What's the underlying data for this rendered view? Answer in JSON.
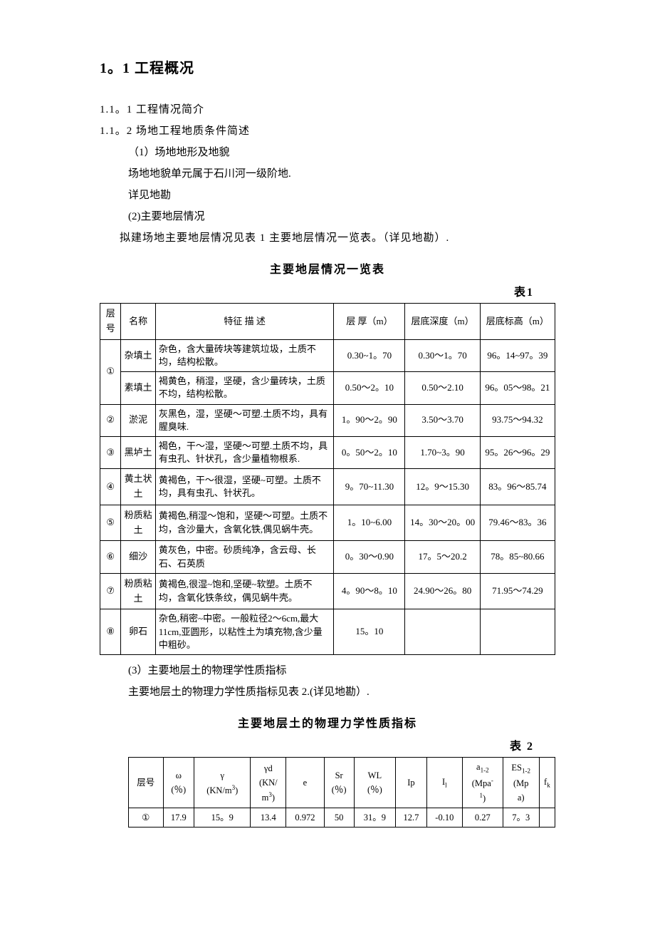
{
  "heading": "1。1 工程概况",
  "sub1": "1.1。1  工程情况简介",
  "sub2": "1.1。2  场地工程地质条件简述",
  "item1": "（1）场地地形及地貌",
  "line_terrain": "场地地貌单元属于石川河一级阶地.",
  "line_see": "详见地勘",
  "item2": "(2)主要地层情况",
  "line_table1_intro": "拟建场地主要地层情况见表 1 主要地层情况一览表。（详见地勘）.",
  "table1_title": "主要地层情况一览表",
  "table1_num": "表1",
  "table1_headers": {
    "layer": "层号",
    "name": "名称",
    "desc": "特征 描 述",
    "thick": "层  厚（m）",
    "depth": "层底深度（m）",
    "elev": "层底标高（m）"
  },
  "table1_rows": [
    {
      "layer": "①",
      "name": "杂填土",
      "desc": "杂色，含大量砖块等建筑垃圾，土质不均，结构松散。",
      "thick": "0.30~1。70",
      "depth": "0.30～1。70",
      "elev": "96。14~97。39",
      "rowspan": 2
    },
    {
      "layer": "",
      "name": "素填土",
      "desc": "褐黄色，稍湿，坚硬，含少量砖块，土质不均，结构松散。",
      "thick": "0.50～2。10",
      "depth": "0.50～2.10",
      "elev": "96。05～98。21"
    },
    {
      "layer": "②",
      "name": "淤泥",
      "desc": "灰黑色，湿，坚硬～可塑.土质不均，具有腥臭味.",
      "thick": "1。90～2。90",
      "depth": "3.50～3.70",
      "elev": "93.75～94.32"
    },
    {
      "layer": "③",
      "name": "黑垆土",
      "desc": "褐色，干～湿，坚硬～可塑.土质不均，具有虫孔、针状孔，含少量植物根系.",
      "thick": "0。50～2。10",
      "depth": "1.70~3。90",
      "elev": "95。26～96。29"
    },
    {
      "layer": "④",
      "name": "黄土状土",
      "desc": "黄褐色，干～很湿，坚硬~可塑。土质不均，具有虫孔、针状孔。",
      "thick": "9。70~11.30",
      "depth": "12。9～15.30",
      "elev": "83。96～85.74"
    },
    {
      "layer": "⑤",
      "name": "粉质粘土",
      "desc": "黄褐色,稍湿～饱和，坚硬～可塑。土质不均，含沙量大，含氧化铁,偶见蜗牛壳。",
      "thick": "1。10~6.00",
      "depth": "14。30～20。00",
      "elev": "79.46～83。36"
    },
    {
      "layer": "⑥",
      "name": "细沙",
      "desc": "黄灰色，中密。砂质纯净，含云母、长石、石英质",
      "thick": "0。30～0.90",
      "depth": "17。5～20.2",
      "elev": "78。85~80.66"
    },
    {
      "layer": "⑦",
      "name": "粉质粘土",
      "desc": "黄褐色,很湿~饱和,坚硬~软塑。土质不均，含氧化铁条纹，偶见蜗牛壳。",
      "thick": "4。90～8。10",
      "depth": "24.90～26。80",
      "elev": "71.95～74.29"
    },
    {
      "layer": "⑧",
      "name": "卵石",
      "desc": "杂色,稍密~中密。一般粒径2～6cm,最大11cm,亚圆形，以粘性土为填充物,含少量中粗砂。",
      "thick": "15。10",
      "depth": "",
      "elev": ""
    }
  ],
  "item3": "(3）主要地层土的物理学性质指标",
  "line_table2_intro": "主要地层土的物理力学性质指标见表 2.(详见地勘）.",
  "table2_title": "主要地层土的物理力学性质指标",
  "table2_num": "表 2",
  "table2_headers": {
    "layer": "层号",
    "w": "ω(%)",
    "gamma": "γ(KN/m³)",
    "gammad": "γd(KN/m³)",
    "e": "e",
    "sr": "Sr(%)",
    "wl": "WL(%)",
    "ip": "Ip",
    "il": "Iₗ",
    "a12": "a₁₋₂(Mpa⁻¹)",
    "es12": "ES₁₋₂(Mpa)",
    "fk": "fₖ"
  },
  "table2_rows": [
    {
      "layer": "①",
      "w": "17.9",
      "gamma": "15。9",
      "gammad": "13.4",
      "e": "0.972",
      "sr": "50",
      "wl": "31。9",
      "ip": "12.7",
      "il": "-0.10",
      "a12": "0.27",
      "es12": "7。3",
      "fk": ""
    }
  ]
}
